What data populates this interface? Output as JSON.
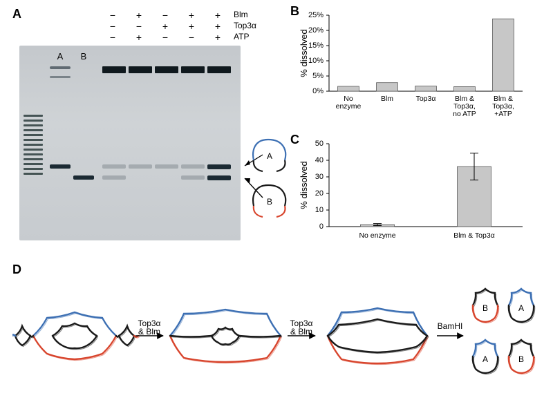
{
  "labels": {
    "A": "A",
    "B": "B",
    "C": "C",
    "D": "D"
  },
  "gel": {
    "proteins": [
      "Blm",
      "Top3α",
      "ATP"
    ],
    "matrix": [
      [
        "−",
        "+",
        "−",
        "+",
        "+"
      ],
      [
        "−",
        "−",
        "+",
        "+",
        "+"
      ],
      [
        "−",
        "+",
        "−",
        "−",
        "+"
      ]
    ],
    "laneAB": [
      "A",
      "B"
    ],
    "band_y": {
      "well": 78,
      "hi": 92,
      "A": 220,
      "B": 236
    },
    "arrows": {
      "A_y": 222,
      "B_y": 238
    }
  },
  "chartB": {
    "type": "bar",
    "ylabel": "% dissolved",
    "ylim": [
      0,
      25
    ],
    "ytick_step": 5,
    "categories": [
      "No\nenzyme",
      "Blm",
      "Top3α",
      "Blm &\nTop3α,\nno ATP",
      "Blm &\nTop3α,\n+ATP"
    ],
    "values": [
      1.6,
      2.8,
      1.7,
      1.5,
      23.8
    ],
    "bar_color": "#c7c7c7",
    "bar_border": "#555555",
    "background_color": "#ffffff",
    "label_fontsize": 10.5,
    "title_fontsize": 13,
    "bar_width": 0.55
  },
  "chartC": {
    "type": "bar",
    "ylabel": "% dissolved",
    "ylim": [
      0,
      50
    ],
    "ytick_step": 10,
    "categories": [
      "No enzyme",
      "Blm & Top3α"
    ],
    "values": [
      1.2,
      36.2
    ],
    "errors": [
      0.6,
      8.1
    ],
    "bar_color": "#c7c7c7",
    "bar_border": "#555555",
    "label_fontsize": 11,
    "bar_width": 0.35
  },
  "panelD": {
    "steps": [
      "Top3α\n& Blm",
      "Top3α\n& Blm",
      "BamHI"
    ],
    "colors": {
      "black": "#1a1a1a",
      "red": "#d8452d",
      "blue": "#3c6fb3"
    },
    "product_labels": [
      "A",
      "B",
      "A",
      "B"
    ]
  },
  "colors": {
    "gel_bg_top": "#c4c8cc",
    "gel_bg_bot": "#c7cbcf",
    "band": "#1b2a33",
    "dna_black": "#1a1a1a",
    "dna_red": "#d8452d",
    "dna_blue": "#3c6fb3"
  }
}
